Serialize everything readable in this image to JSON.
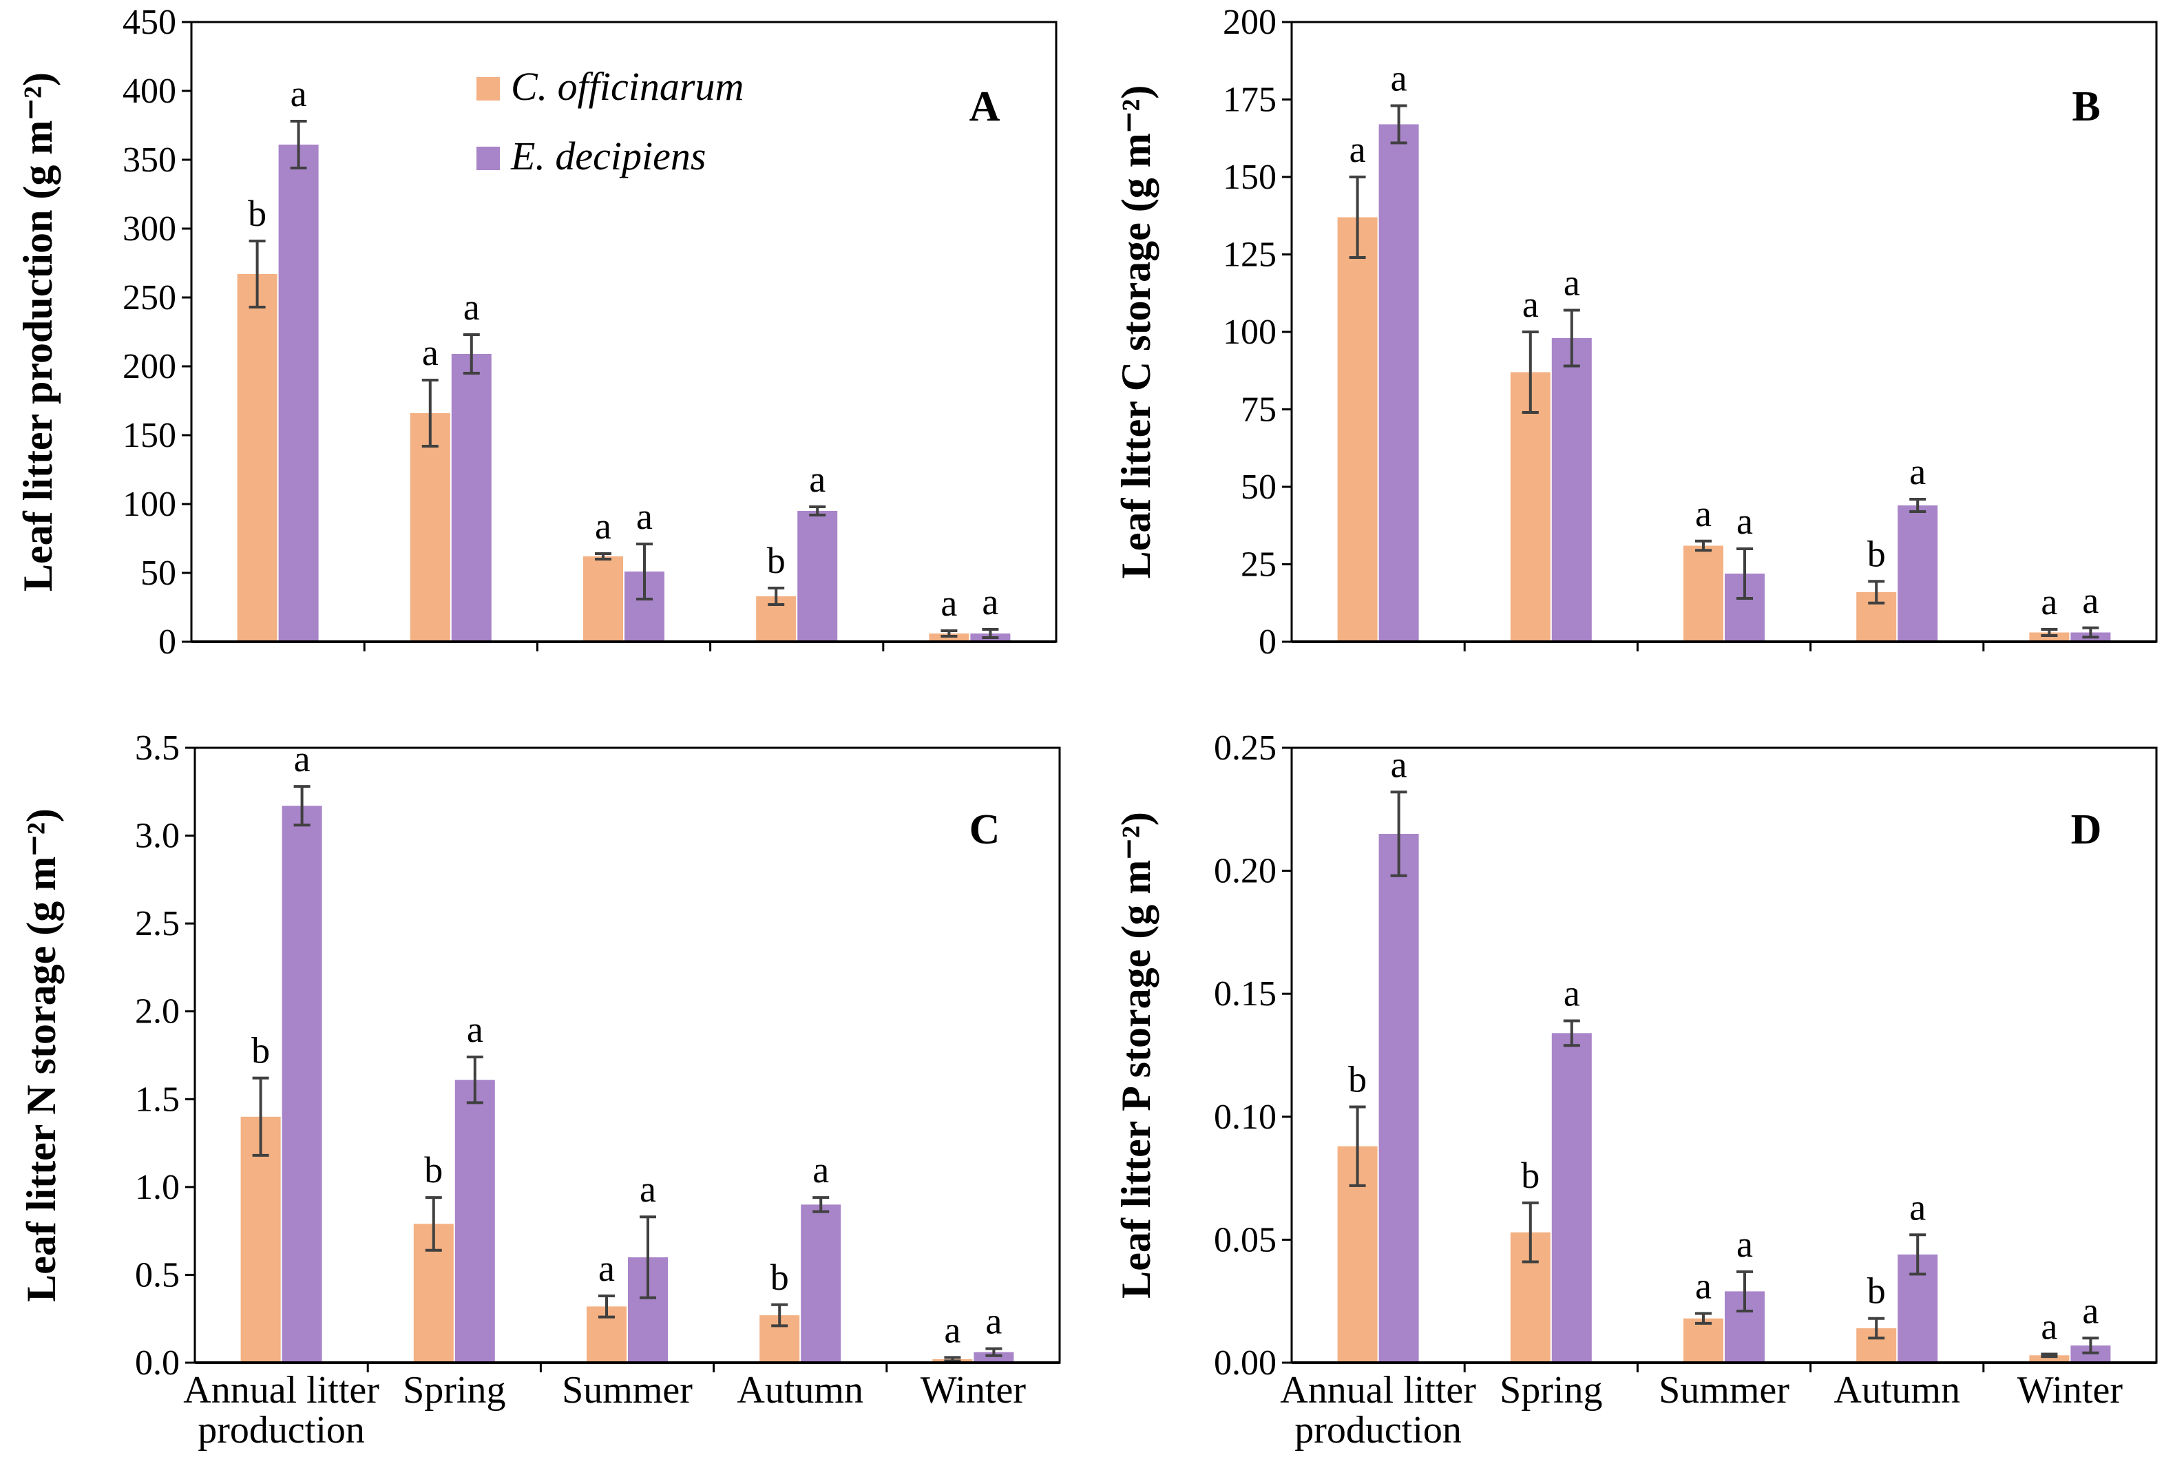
{
  "legend": {
    "series": [
      {
        "name": "C. officinarum",
        "color": "#f4b183"
      },
      {
        "name": "E. decipiens",
        "color": "#a884c9"
      }
    ]
  },
  "chart_data": [
    {
      "type": "bar",
      "panel": "A",
      "ylabel": "Leaf litter production (g m⁻²)",
      "ylim": [
        0,
        450
      ],
      "yticks": [
        "0",
        "50",
        "100",
        "150",
        "200",
        "250",
        "300",
        "350",
        "400",
        "450"
      ],
      "yticks_values": [
        0,
        50,
        100,
        150,
        200,
        250,
        300,
        350,
        400,
        450
      ],
      "categories": [
        "Annual litter production",
        "Spring",
        "Summer",
        "Autumn",
        "Winter"
      ],
      "category_lines": [
        [
          "",
          ""
        ],
        [
          "",
          ""
        ],
        [
          "",
          ""
        ],
        [
          "",
          ""
        ],
        [
          "",
          ""
        ]
      ],
      "show_xticks": false,
      "series": [
        {
          "name": "C. officinarum",
          "values": [
            267,
            166,
            62,
            33,
            6
          ],
          "errors": [
            24,
            24,
            2,
            6,
            2
          ],
          "letters": [
            "b",
            "a",
            "a",
            "b",
            "a"
          ]
        },
        {
          "name": "E. decipiens",
          "values": [
            361,
            209,
            51,
            95,
            6
          ],
          "errors": [
            17,
            14,
            20,
            3,
            3
          ],
          "letters": [
            "a",
            "a",
            "a",
            "a",
            "a"
          ]
        }
      ]
    },
    {
      "type": "bar",
      "panel": "B",
      "ylabel": "Leaf litter C storage (g m⁻²)",
      "ylim": [
        0,
        200
      ],
      "yticks": [
        "0",
        "25",
        "50",
        "75",
        "100",
        "125",
        "150",
        "175",
        "200"
      ],
      "yticks_values": [
        0,
        25,
        50,
        75,
        100,
        125,
        150,
        175,
        200
      ],
      "categories": [
        "Annual litter production",
        "Spring",
        "Summer",
        "Autumn",
        "Winter"
      ],
      "category_lines": [
        [
          "",
          ""
        ],
        [
          "",
          ""
        ],
        [
          "",
          ""
        ],
        [
          "",
          ""
        ],
        [
          "",
          ""
        ]
      ],
      "show_xticks": false,
      "series": [
        {
          "name": "C. officinarum",
          "values": [
            137,
            87,
            31,
            16,
            3
          ],
          "errors": [
            13,
            13,
            1.5,
            3.5,
            1
          ],
          "letters": [
            "a",
            "a",
            "a",
            "b",
            "a"
          ]
        },
        {
          "name": "E. decipiens",
          "values": [
            167,
            98,
            22,
            44,
            3
          ],
          "errors": [
            6,
            9,
            8,
            2,
            1.5
          ],
          "letters": [
            "a",
            "a",
            "a",
            "a",
            "a"
          ]
        }
      ]
    },
    {
      "type": "bar",
      "panel": "C",
      "ylabel": "Leaf litter N storage (g m⁻²)",
      "ylim": [
        0,
        3.5
      ],
      "yticks": [
        "0.0",
        "0.5",
        "1.0",
        "1.5",
        "2.0",
        "2.5",
        "3.0",
        "3.5"
      ],
      "yticks_values": [
        0,
        0.5,
        1.0,
        1.5,
        2.0,
        2.5,
        3.0,
        3.5
      ],
      "categories": [
        "Annual litter production",
        "Spring",
        "Summer",
        "Autumn",
        "Winter"
      ],
      "category_lines": [
        [
          "Annual litter",
          "production"
        ],
        [
          "Spring",
          ""
        ],
        [
          "Summer",
          ""
        ],
        [
          "Autumn",
          ""
        ],
        [
          "Winter",
          ""
        ]
      ],
      "show_xticks": true,
      "series": [
        {
          "name": "C. officinarum",
          "values": [
            1.4,
            0.79,
            0.32,
            0.27,
            0.02
          ],
          "errors": [
            0.22,
            0.15,
            0.06,
            0.06,
            0.01
          ],
          "letters": [
            "b",
            "b",
            "a",
            "b",
            "a"
          ]
        },
        {
          "name": "E. decipiens",
          "values": [
            3.17,
            1.61,
            0.6,
            0.9,
            0.06
          ],
          "errors": [
            0.11,
            0.13,
            0.23,
            0.04,
            0.02
          ],
          "letters": [
            "a",
            "a",
            "a",
            "a",
            "a"
          ]
        }
      ]
    },
    {
      "type": "bar",
      "panel": "D",
      "ylabel": "Leaf litter P storage (g m⁻²)",
      "ylim": [
        0,
        0.25
      ],
      "yticks": [
        "0.00",
        "0.05",
        "0.10",
        "0.15",
        "0.20",
        "0.25"
      ],
      "yticks_values": [
        0,
        0.05,
        0.1,
        0.15,
        0.2,
        0.25
      ],
      "categories": [
        "Annual litter production",
        "Spring",
        "Summer",
        "Autumn",
        "Winter"
      ],
      "category_lines": [
        [
          "Annual litter",
          "production"
        ],
        [
          "Spring",
          ""
        ],
        [
          "Summer",
          ""
        ],
        [
          "Autumn",
          ""
        ],
        [
          "Winter",
          ""
        ]
      ],
      "show_xticks": true,
      "series": [
        {
          "name": "C. officinarum",
          "values": [
            0.088,
            0.053,
            0.018,
            0.014,
            0.003
          ],
          "errors": [
            0.016,
            0.012,
            0.002,
            0.004,
            0.0005
          ],
          "letters": [
            "b",
            "b",
            "a",
            "b",
            "a"
          ]
        },
        {
          "name": "E. decipiens",
          "values": [
            0.215,
            0.134,
            0.029,
            0.044,
            0.007
          ],
          "errors": [
            0.017,
            0.005,
            0.008,
            0.008,
            0.003
          ],
          "letters": [
            "a",
            "a",
            "a",
            "a",
            "a"
          ]
        }
      ]
    }
  ]
}
